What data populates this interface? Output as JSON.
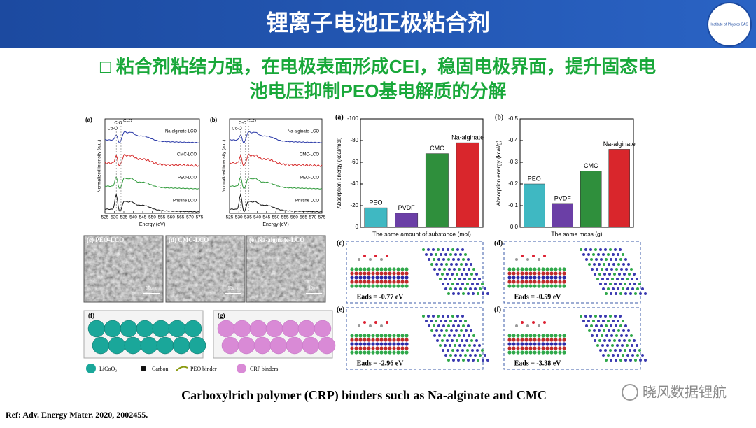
{
  "header": {
    "title": "锂离子电池正极粘合剂",
    "logo": "Institute of Physics CAS"
  },
  "subtitle": [
    "□ 粘合剂粘结力强，在电极表面形成CEI，稳固电极界面，提升固态电",
    "池电压抑制PEO基电解质的分解"
  ],
  "xps": [
    {
      "label": "(a)",
      "ylabel": "Normalized intensity (a.u.)",
      "xlabel": "Energy (eV)",
      "xticks": [
        525,
        530,
        535,
        540,
        545,
        550,
        555,
        560,
        565,
        570,
        575
      ],
      "curves": [
        "Na-alginate-LCO",
        "CMC-LCO",
        "PEO-LCO",
        "Pristine LCO"
      ],
      "annotations": [
        "C-O",
        "C=O",
        "Co-O"
      ]
    },
    {
      "label": "(b)",
      "ylabel": "Normalized intensity (a.u.)",
      "xlabel": "Energy (eV)",
      "xticks": [
        525,
        530,
        535,
        540,
        545,
        550,
        555,
        560,
        565,
        570,
        575
      ],
      "curves": [
        "Na-alginate-LCO",
        "CMC-LCO",
        "PEO-LCO",
        "Pristine LCO"
      ],
      "annotations": [
        "C-O",
        "C=O",
        "Co-O"
      ]
    }
  ],
  "sem": [
    {
      "label": "(c) PEO-LCO",
      "scale": "15μm"
    },
    {
      "label": "(d) CMC-LCO",
      "scale": "15μm"
    },
    {
      "label": "(e) Na-alginate-LCO",
      "scale": "15μm"
    }
  ],
  "cartoons": [
    "(f)",
    "(g)"
  ],
  "legend": [
    "LiCoO₂",
    "Carbon",
    "PEO binder",
    "CRP binders"
  ],
  "charts": [
    {
      "type": "bar",
      "label": "(a)",
      "ylabel": "Absorption energy (kcal/mol)",
      "xlabel": "The same amount of substance (mol)",
      "categories": [
        "PEO",
        "PVDF",
        "CMC",
        "Na-alginate"
      ],
      "colors": [
        "#3fb8c2",
        "#6b3fa6",
        "#2f8f3c",
        "#d9262c"
      ],
      "values": [
        -18,
        -13,
        -68,
        -78
      ],
      "ylim": [
        0,
        -100
      ],
      "yticks": [
        -100,
        -80,
        -60,
        -40,
        -20,
        0
      ]
    },
    {
      "type": "bar",
      "label": "(b)",
      "ylabel": "Absorption energy (kcal/g)",
      "xlabel": "The same mass (g)",
      "categories": [
        "PEO",
        "PVDF",
        "CMC",
        "Na-alginate"
      ],
      "colors": [
        "#3fb8c2",
        "#6b3fa6",
        "#2f8f3c",
        "#d9262c"
      ],
      "values": [
        -0.2,
        -0.11,
        -0.26,
        -0.36
      ],
      "ylim": [
        0,
        -0.5
      ],
      "yticks": [
        -0.5,
        -0.4,
        -0.3,
        -0.2,
        -0.1,
        {
          "value": 0,
          "label": "0.0"
        }
      ]
    }
  ],
  "structures": [
    {
      "label": "(c)",
      "eads": "Eads = -0.77 eV"
    },
    {
      "label": "(d)",
      "eads": "Eads = -0.59 eV"
    },
    {
      "label": "(e)",
      "eads": "Eads = -2.96 eV"
    },
    {
      "label": "(f)",
      "eads": "Eads = -3.38 eV"
    }
  ],
  "caption": "Carboxylrich polymer (CRP) binders such as  Na-alginate and CMC",
  "ref": "Ref: Adv. Energy Mater. 2020, 2002455.",
  "watermark": "晓风数据锂航"
}
